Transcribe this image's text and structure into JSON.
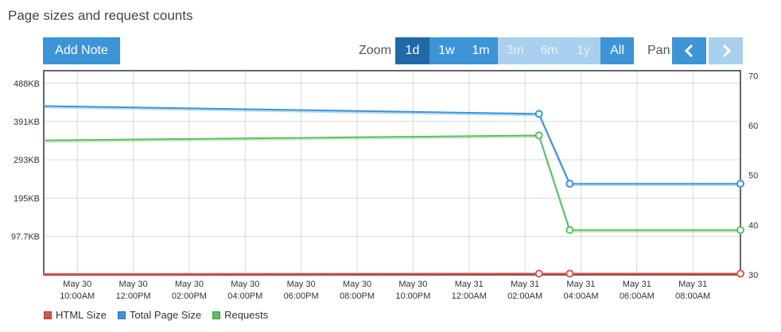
{
  "title": "Page sizes and request counts",
  "toolbar": {
    "add_note": "Add Note",
    "zoom_label": "Zoom",
    "zoom_options": [
      {
        "label": "1d",
        "state": "active"
      },
      {
        "label": "1w",
        "state": "normal"
      },
      {
        "label": "1m",
        "state": "normal"
      },
      {
        "label": "3m",
        "state": "disabled"
      },
      {
        "label": "6m",
        "state": "disabled"
      },
      {
        "label": "1y",
        "state": "disabled"
      },
      {
        "label": "All",
        "state": "normal"
      }
    ],
    "pan_label": "Pan",
    "pan_prev_icon": "chevron-left-icon",
    "pan_next_icon": "chevron-right-icon"
  },
  "chart_data": {
    "type": "line",
    "x_ticks": [
      [
        "May 30",
        "10:00AM"
      ],
      [
        "May 30",
        "12:00PM"
      ],
      [
        "May 30",
        "02:00PM"
      ],
      [
        "May 30",
        "04:00PM"
      ],
      [
        "May 30",
        "06:00PM"
      ],
      [
        "May 30",
        "08:00PM"
      ],
      [
        "May 30",
        "10:00PM"
      ],
      [
        "May 31",
        "12:00AM"
      ],
      [
        "May 31",
        "02:00AM"
      ],
      [
        "May 31",
        "04:00AM"
      ],
      [
        "May 31",
        "06:00AM"
      ],
      [
        "May 31",
        "08:00AM"
      ]
    ],
    "x_tick_hours": [
      10,
      12,
      14,
      16,
      18,
      20,
      22,
      24,
      26,
      28,
      30,
      32
    ],
    "xlim_hours": [
      8.8,
      33.7
    ],
    "y_left": {
      "ticks": [
        "97.7KB",
        "195KB",
        "293KB",
        "391KB",
        "488KB"
      ],
      "tick_values_kb": [
        97.7,
        195,
        293,
        391,
        488
      ],
      "range_kb": [
        0,
        520
      ]
    },
    "y_right": {
      "ticks": [
        "30",
        "40",
        "50",
        "60",
        "70"
      ],
      "tick_values": [
        30,
        40,
        50,
        60,
        70
      ],
      "range": [
        30,
        71
      ]
    },
    "series": [
      {
        "name": "HTML Size",
        "axis": "left",
        "color": "#d9534f",
        "points": [
          [
            8.8,
            2
          ],
          [
            26.5,
            3
          ],
          [
            27.6,
            3
          ],
          [
            33.7,
            3
          ]
        ],
        "markers": [
          1,
          2,
          3
        ]
      },
      {
        "name": "Total Page Size",
        "axis": "left",
        "color": "#3d94d6",
        "points": [
          [
            8.8,
            430
          ],
          [
            26.5,
            410
          ],
          [
            27.6,
            232
          ],
          [
            33.7,
            232
          ]
        ],
        "markers": [
          1,
          2,
          3
        ]
      },
      {
        "name": "Requests",
        "axis": "right",
        "color": "#5cbf60",
        "points": [
          [
            8.8,
            57
          ],
          [
            26.5,
            58
          ],
          [
            27.6,
            39
          ],
          [
            33.7,
            39
          ]
        ],
        "markers": [
          1,
          2,
          3
        ]
      }
    ],
    "grid": true,
    "legend_position": "bottom-left"
  }
}
